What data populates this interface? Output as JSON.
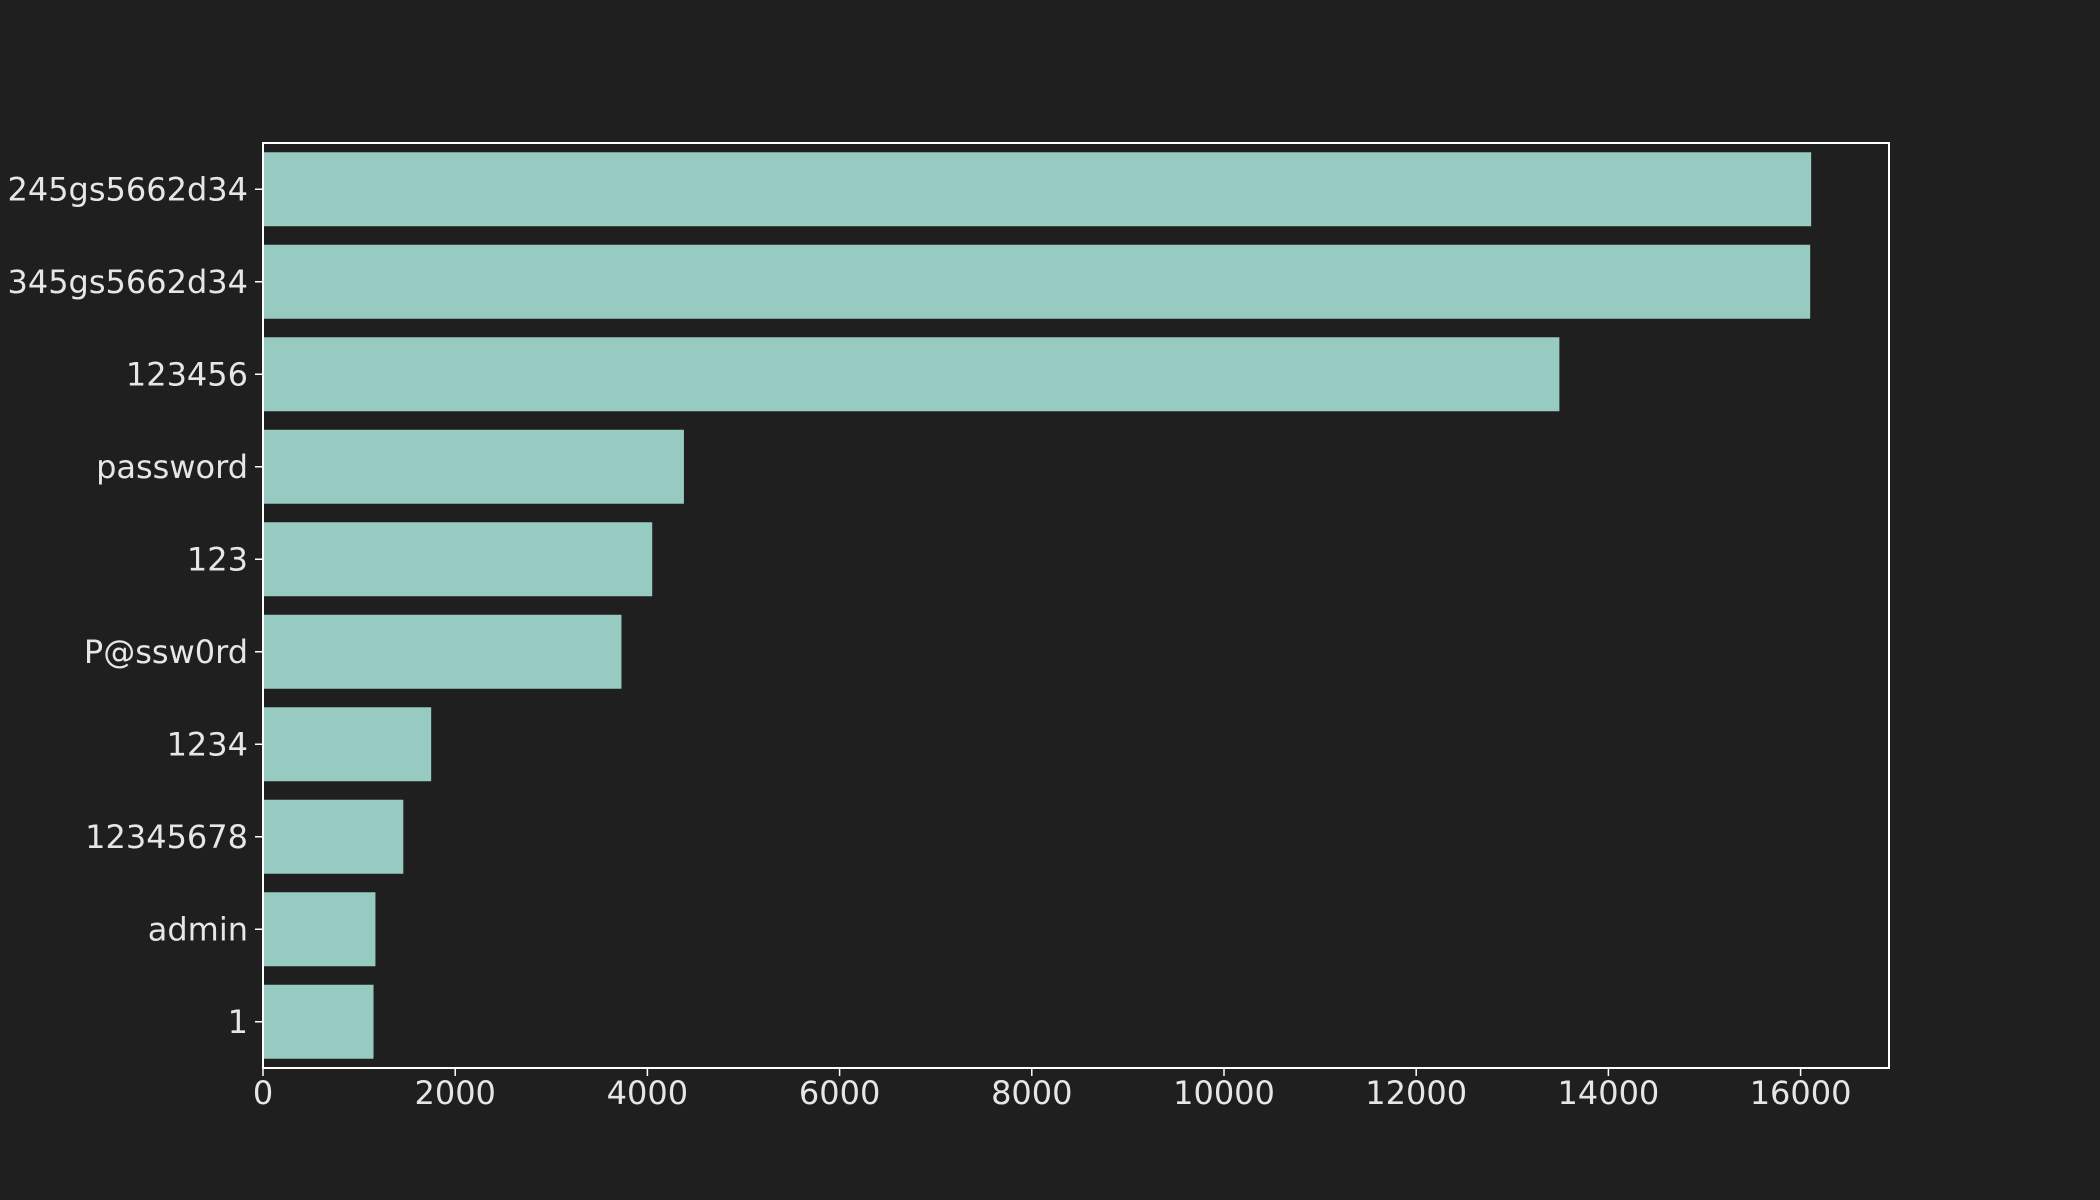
{
  "chart_data": {
    "type": "bar",
    "orientation": "horizontal",
    "categories": [
      "245gs5662d34",
      "345gs5662d34",
      "123456",
      "password",
      "123",
      "P@ssw0rd",
      "1234",
      "12345678",
      "admin",
      "1"
    ],
    "values": [
      16110,
      16100,
      13490,
      4380,
      4050,
      3730,
      1750,
      1460,
      1170,
      1150
    ],
    "xlim": [
      0,
      16920
    ],
    "xticks": [
      0,
      2000,
      4000,
      6000,
      8000,
      10000,
      12000,
      14000,
      16000
    ],
    "title": "",
    "xlabel": "",
    "ylabel": "",
    "grid": false,
    "legend": "none"
  },
  "colors": {
    "background": "#1f1f1f",
    "bar": "#97cbc1",
    "axis": "#ffffff",
    "text": "#e6e6e6"
  }
}
